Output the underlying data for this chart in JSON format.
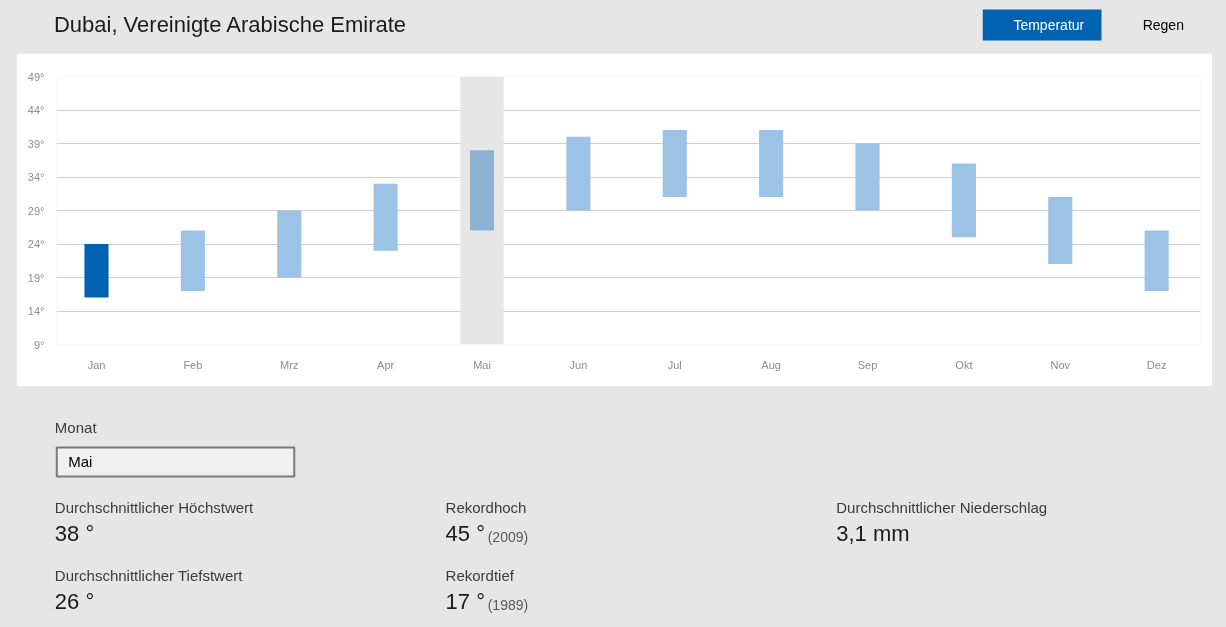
{
  "chart_data": {
    "type": "bar",
    "title": "Dubai, Vereinigte Arabische Emirate",
    "categories": [
      "Jan",
      "Feb",
      "Mrz",
      "Apr",
      "Mai",
      "Jun",
      "Jul",
      "Aug",
      "Sep",
      "Okt",
      "Nov",
      "Dez"
    ],
    "base": [
      16,
      17,
      19,
      23,
      26,
      29,
      31,
      31,
      29,
      25,
      21,
      17
    ],
    "values": [
      8,
      9,
      10,
      10,
      12,
      11,
      10,
      10,
      10,
      11,
      10,
      9
    ],
    "colors": [
      "#0063b1",
      "#9cc3e5",
      "#9cc3e5",
      "#9cc3e5",
      "#8db1d3",
      "#9cc3e5",
      "#9cc3e5",
      "#9cc3e5",
      "#9cc3e5",
      "#9cc3e5",
      "#9cc3e5",
      "#9cc3e5"
    ],
    "ylim": [
      9,
      49
    ],
    "yticks": [
      {
        "value": 9,
        "label": "9°"
      },
      {
        "value": 14,
        "label": "14°"
      },
      {
        "value": 19,
        "label": "19°"
      },
      {
        "value": 24,
        "label": "24°"
      },
      {
        "value": 29,
        "label": "29°"
      },
      {
        "value": 34,
        "label": "34°"
      },
      {
        "value": 39,
        "label": "39°"
      },
      {
        "value": 44,
        "label": "44°"
      },
      {
        "value": 49,
        "label": "49°"
      }
    ],
    "grid": "y",
    "bands": [
      {
        "axis": "x",
        "from": "Mai",
        "to": "Mai",
        "color": "#e6e6e6"
      }
    ],
    "annotations": [
      "Temperatur",
      "Regen",
      "Monat",
      "Mai",
      "Durchschnittlicher Höchstwert",
      "38 °",
      "Durchschnittlicher Tiefstwert",
      "26 °",
      "Rekordhoch",
      "45 °",
      "(2009)",
      "Rekordtief",
      "17 °",
      "(1989)",
      "Durchschnittlicher Niederschlag",
      "3,1 mm"
    ]
  }
}
